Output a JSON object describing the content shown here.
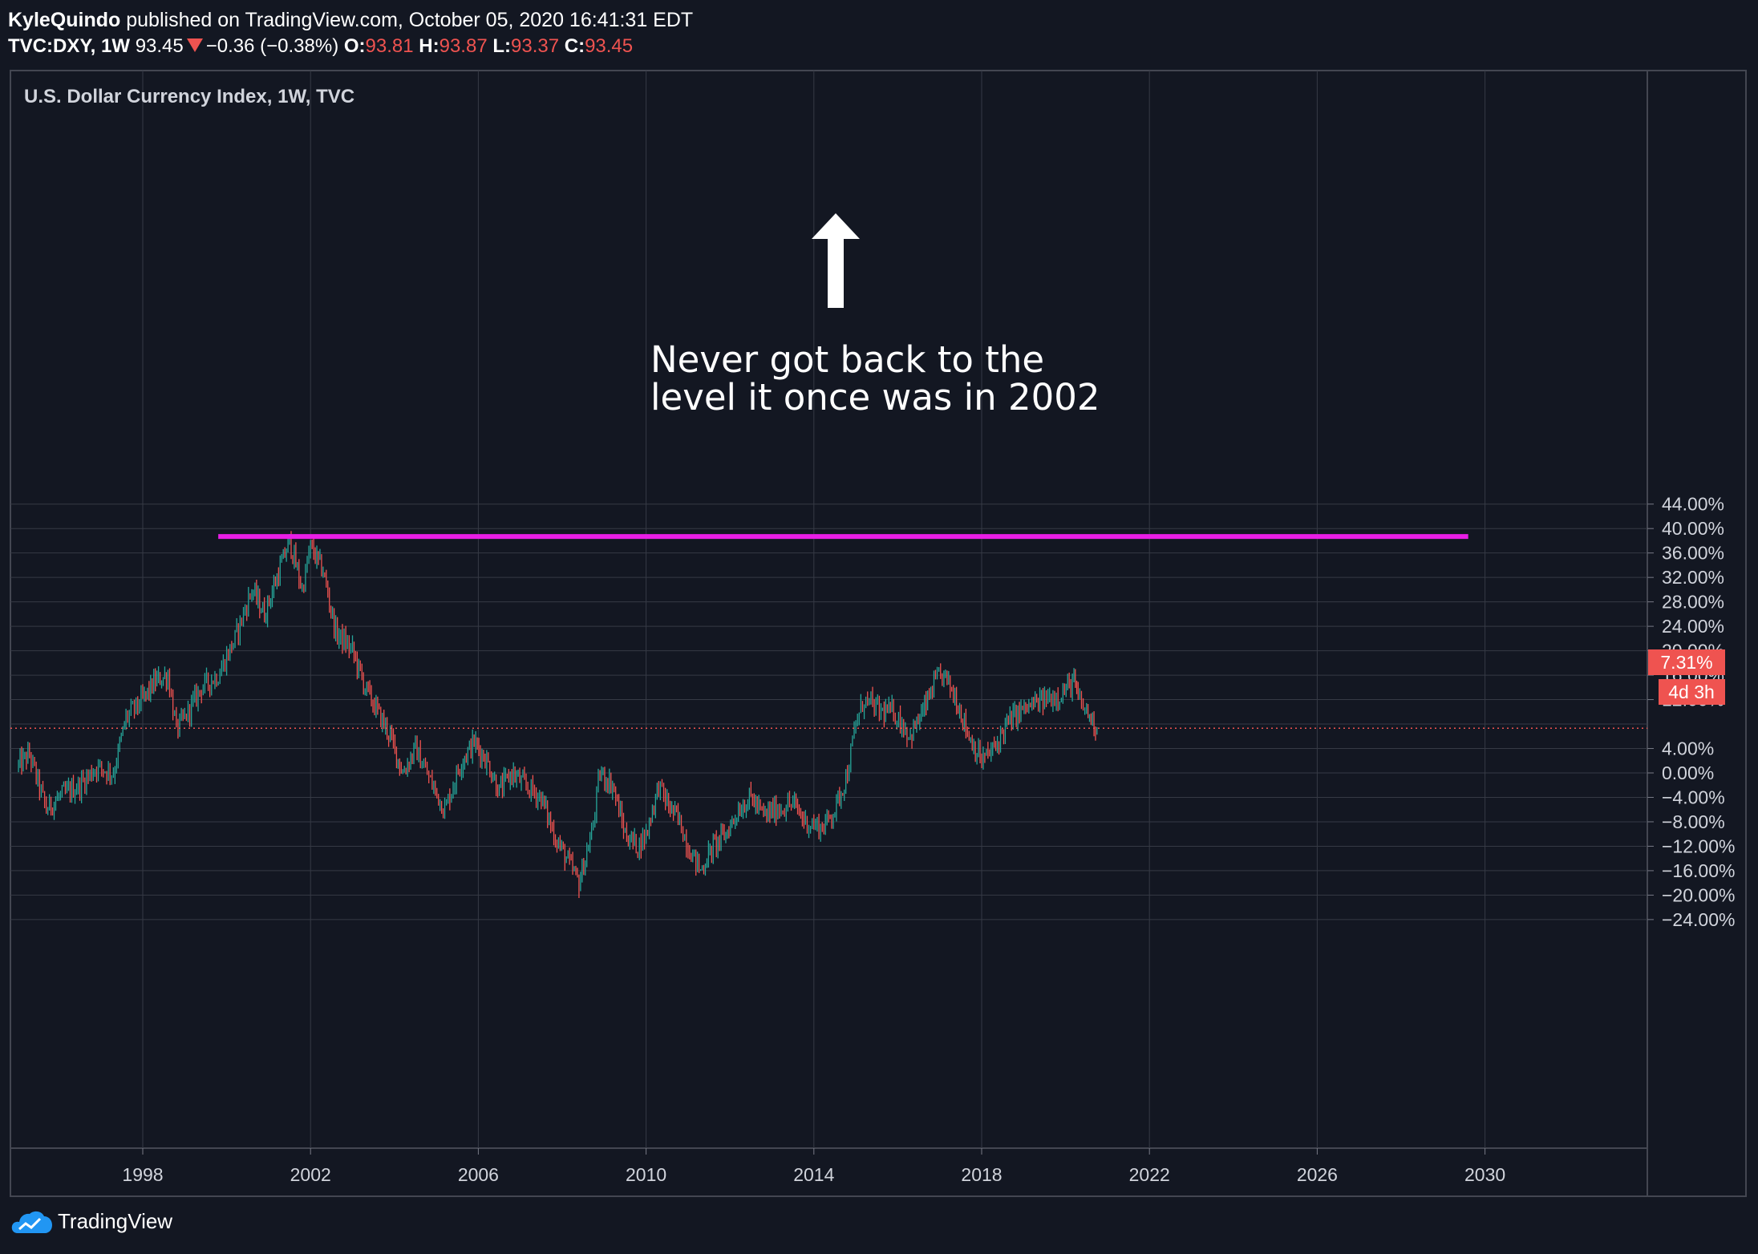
{
  "header": {
    "author": "KyleQuindo",
    "published_text": "published on TradingView.com, October 05, 2020 16:41:31 EDT",
    "symbol": "TVC:DXY, 1W",
    "last": "93.45",
    "change": "−0.36 (−0.38%)",
    "open_label": "O:",
    "open": "93.81",
    "high_label": "H:",
    "high": "93.87",
    "low_label": "L:",
    "low": "93.37",
    "close_label": "C:",
    "close": "93.45"
  },
  "chart_data": {
    "type": "candlestick",
    "title": "U.S. Dollar Currency Index, 1W, TVC",
    "y_scale": "percent",
    "ylim": [
      -25,
      46
    ],
    "xlim": [
      1995.0,
      2034.0
    ],
    "x_ticks": [
      "1998",
      "2002",
      "2006",
      "2010",
      "2014",
      "2018",
      "2022",
      "2026",
      "2030"
    ],
    "y_ticks": [
      "44.00%",
      "40.00%",
      "36.00%",
      "32.00%",
      "28.00%",
      "24.00%",
      "20.00%",
      "16.00%",
      "12.00%",
      "4.00%",
      "0.00%",
      "-4.00%",
      "-8.00%",
      "-12.00%",
      "-16.00%",
      "-20.00%",
      "-24.00%"
    ],
    "grid": true,
    "series": [
      {
        "points": [
          [
            1995.0,
            1
          ],
          [
            1995.3,
            3
          ],
          [
            1995.7,
            -6
          ],
          [
            1996.0,
            -4
          ],
          [
            1996.5,
            -2
          ],
          [
            1996.9,
            1
          ],
          [
            1997.3,
            0
          ],
          [
            1997.6,
            9
          ],
          [
            1998.0,
            12
          ],
          [
            1998.3,
            15
          ],
          [
            1998.6,
            16
          ],
          [
            1998.8,
            7
          ],
          [
            1999.0,
            9
          ],
          [
            1999.4,
            14
          ],
          [
            1999.8,
            16
          ],
          [
            2000.2,
            22
          ],
          [
            2000.6,
            30
          ],
          [
            2000.9,
            26
          ],
          [
            2001.2,
            32
          ],
          [
            2001.5,
            38
          ],
          [
            2001.8,
            30
          ],
          [
            2002.0,
            37
          ],
          [
            2002.3,
            33
          ],
          [
            2002.6,
            23
          ],
          [
            2003.0,
            20
          ],
          [
            2003.3,
            14
          ],
          [
            2003.6,
            10
          ],
          [
            2003.9,
            6
          ],
          [
            2004.2,
            0
          ],
          [
            2004.5,
            4
          ],
          [
            2004.9,
            -2
          ],
          [
            2005.2,
            -6
          ],
          [
            2005.6,
            2
          ],
          [
            2005.9,
            5
          ],
          [
            2006.2,
            2
          ],
          [
            2006.5,
            -3
          ],
          [
            2006.8,
            0
          ],
          [
            2007.1,
            -2
          ],
          [
            2007.5,
            -4
          ],
          [
            2007.8,
            -10
          ],
          [
            2008.1,
            -14
          ],
          [
            2008.4,
            -18
          ],
          [
            2008.7,
            -10
          ],
          [
            2008.9,
            0
          ],
          [
            2009.2,
            -2
          ],
          [
            2009.5,
            -10
          ],
          [
            2009.8,
            -12
          ],
          [
            2010.0,
            -10
          ],
          [
            2010.3,
            -2
          ],
          [
            2010.5,
            -5
          ],
          [
            2010.8,
            -8
          ],
          [
            2011.0,
            -12
          ],
          [
            2011.3,
            -16
          ],
          [
            2011.6,
            -12
          ],
          [
            2011.9,
            -10
          ],
          [
            2012.2,
            -6
          ],
          [
            2012.5,
            -4
          ],
          [
            2012.8,
            -7
          ],
          [
            2013.1,
            -6
          ],
          [
            2013.5,
            -5
          ],
          [
            2013.8,
            -8
          ],
          [
            2014.2,
            -9
          ],
          [
            2014.5,
            -6
          ],
          [
            2014.8,
            0
          ],
          [
            2015.0,
            8
          ],
          [
            2015.2,
            12
          ],
          [
            2015.6,
            10
          ],
          [
            2015.9,
            10
          ],
          [
            2016.3,
            6
          ],
          [
            2016.6,
            10
          ],
          [
            2016.9,
            15
          ],
          [
            2017.1,
            16
          ],
          [
            2017.4,
            12
          ],
          [
            2017.7,
            6
          ],
          [
            2018.0,
            2
          ],
          [
            2018.3,
            4
          ],
          [
            2018.6,
            8
          ],
          [
            2018.9,
            10
          ],
          [
            2019.2,
            11
          ],
          [
            2019.5,
            12
          ],
          [
            2019.9,
            13
          ],
          [
            2020.2,
            15
          ],
          [
            2020.3,
            12
          ],
          [
            2020.5,
            10
          ],
          [
            2020.75,
            7.31
          ]
        ]
      }
    ],
    "last_value_label": "7.31%",
    "countdown_label": "4d 3h",
    "resistance_level": 38.7,
    "resistance_from": 1999.8,
    "resistance_to": 2029.6,
    "annotation_line1": "Never got back to the",
    "annotation_line2": "level it once was in 2002",
    "colors": {
      "background": "#131722",
      "grid": "#363a45",
      "up": "#26a69a",
      "down": "#ef5350",
      "resistance": "#e91ee6",
      "arrow": "#ffffff",
      "last_price": "#ef5350"
    }
  },
  "footer": {
    "brand": "TradingView"
  }
}
